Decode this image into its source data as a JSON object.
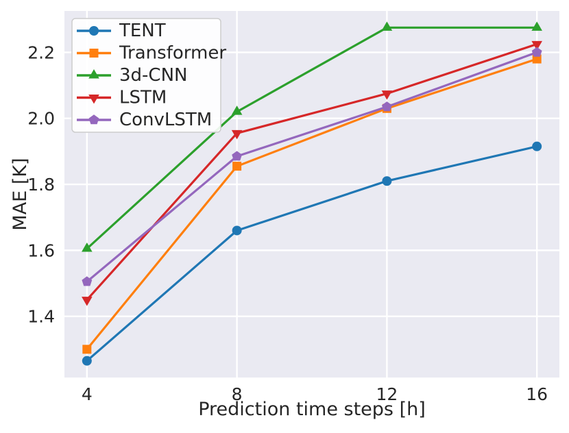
{
  "figure": {
    "background": "#ffffff",
    "plot_background": "#eaeaf2",
    "grid_color": "#ffffff",
    "text_color": "#262626",
    "legend_background": "#ffffff",
    "legend_border": "#cccccc"
  },
  "chart_data": {
    "type": "line",
    "title": "",
    "xlabel": "Prediction time steps [h]",
    "ylabel": "MAE [K]",
    "x": [
      4,
      8,
      12,
      16
    ],
    "xticks": [
      4,
      8,
      12,
      16
    ],
    "yticks": [
      1.4,
      1.6,
      1.8,
      2.0,
      2.2
    ],
    "xlim": [
      3.4,
      16.6
    ],
    "ylim": [
      1.2145,
      2.3255
    ],
    "grid": true,
    "legend_position": "upper left",
    "series": [
      {
        "name": "TENT",
        "color": "#1f77b4",
        "marker": "circle",
        "values": [
          1.265,
          1.66,
          1.81,
          1.915
        ]
      },
      {
        "name": "Transformer",
        "color": "#ff7f0e",
        "marker": "square",
        "values": [
          1.3,
          1.855,
          2.03,
          2.18
        ]
      },
      {
        "name": "3d-CNN",
        "color": "#2ca02c",
        "marker": "triangle-up",
        "values": [
          1.605,
          2.02,
          2.275,
          2.275
        ]
      },
      {
        "name": "LSTM",
        "color": "#d62728",
        "marker": "triangle-down",
        "values": [
          1.45,
          1.955,
          2.075,
          2.225
        ]
      },
      {
        "name": "ConvLSTM",
        "color": "#9467bd",
        "marker": "pentagon",
        "values": [
          1.505,
          1.885,
          2.035,
          2.2
        ]
      }
    ]
  }
}
